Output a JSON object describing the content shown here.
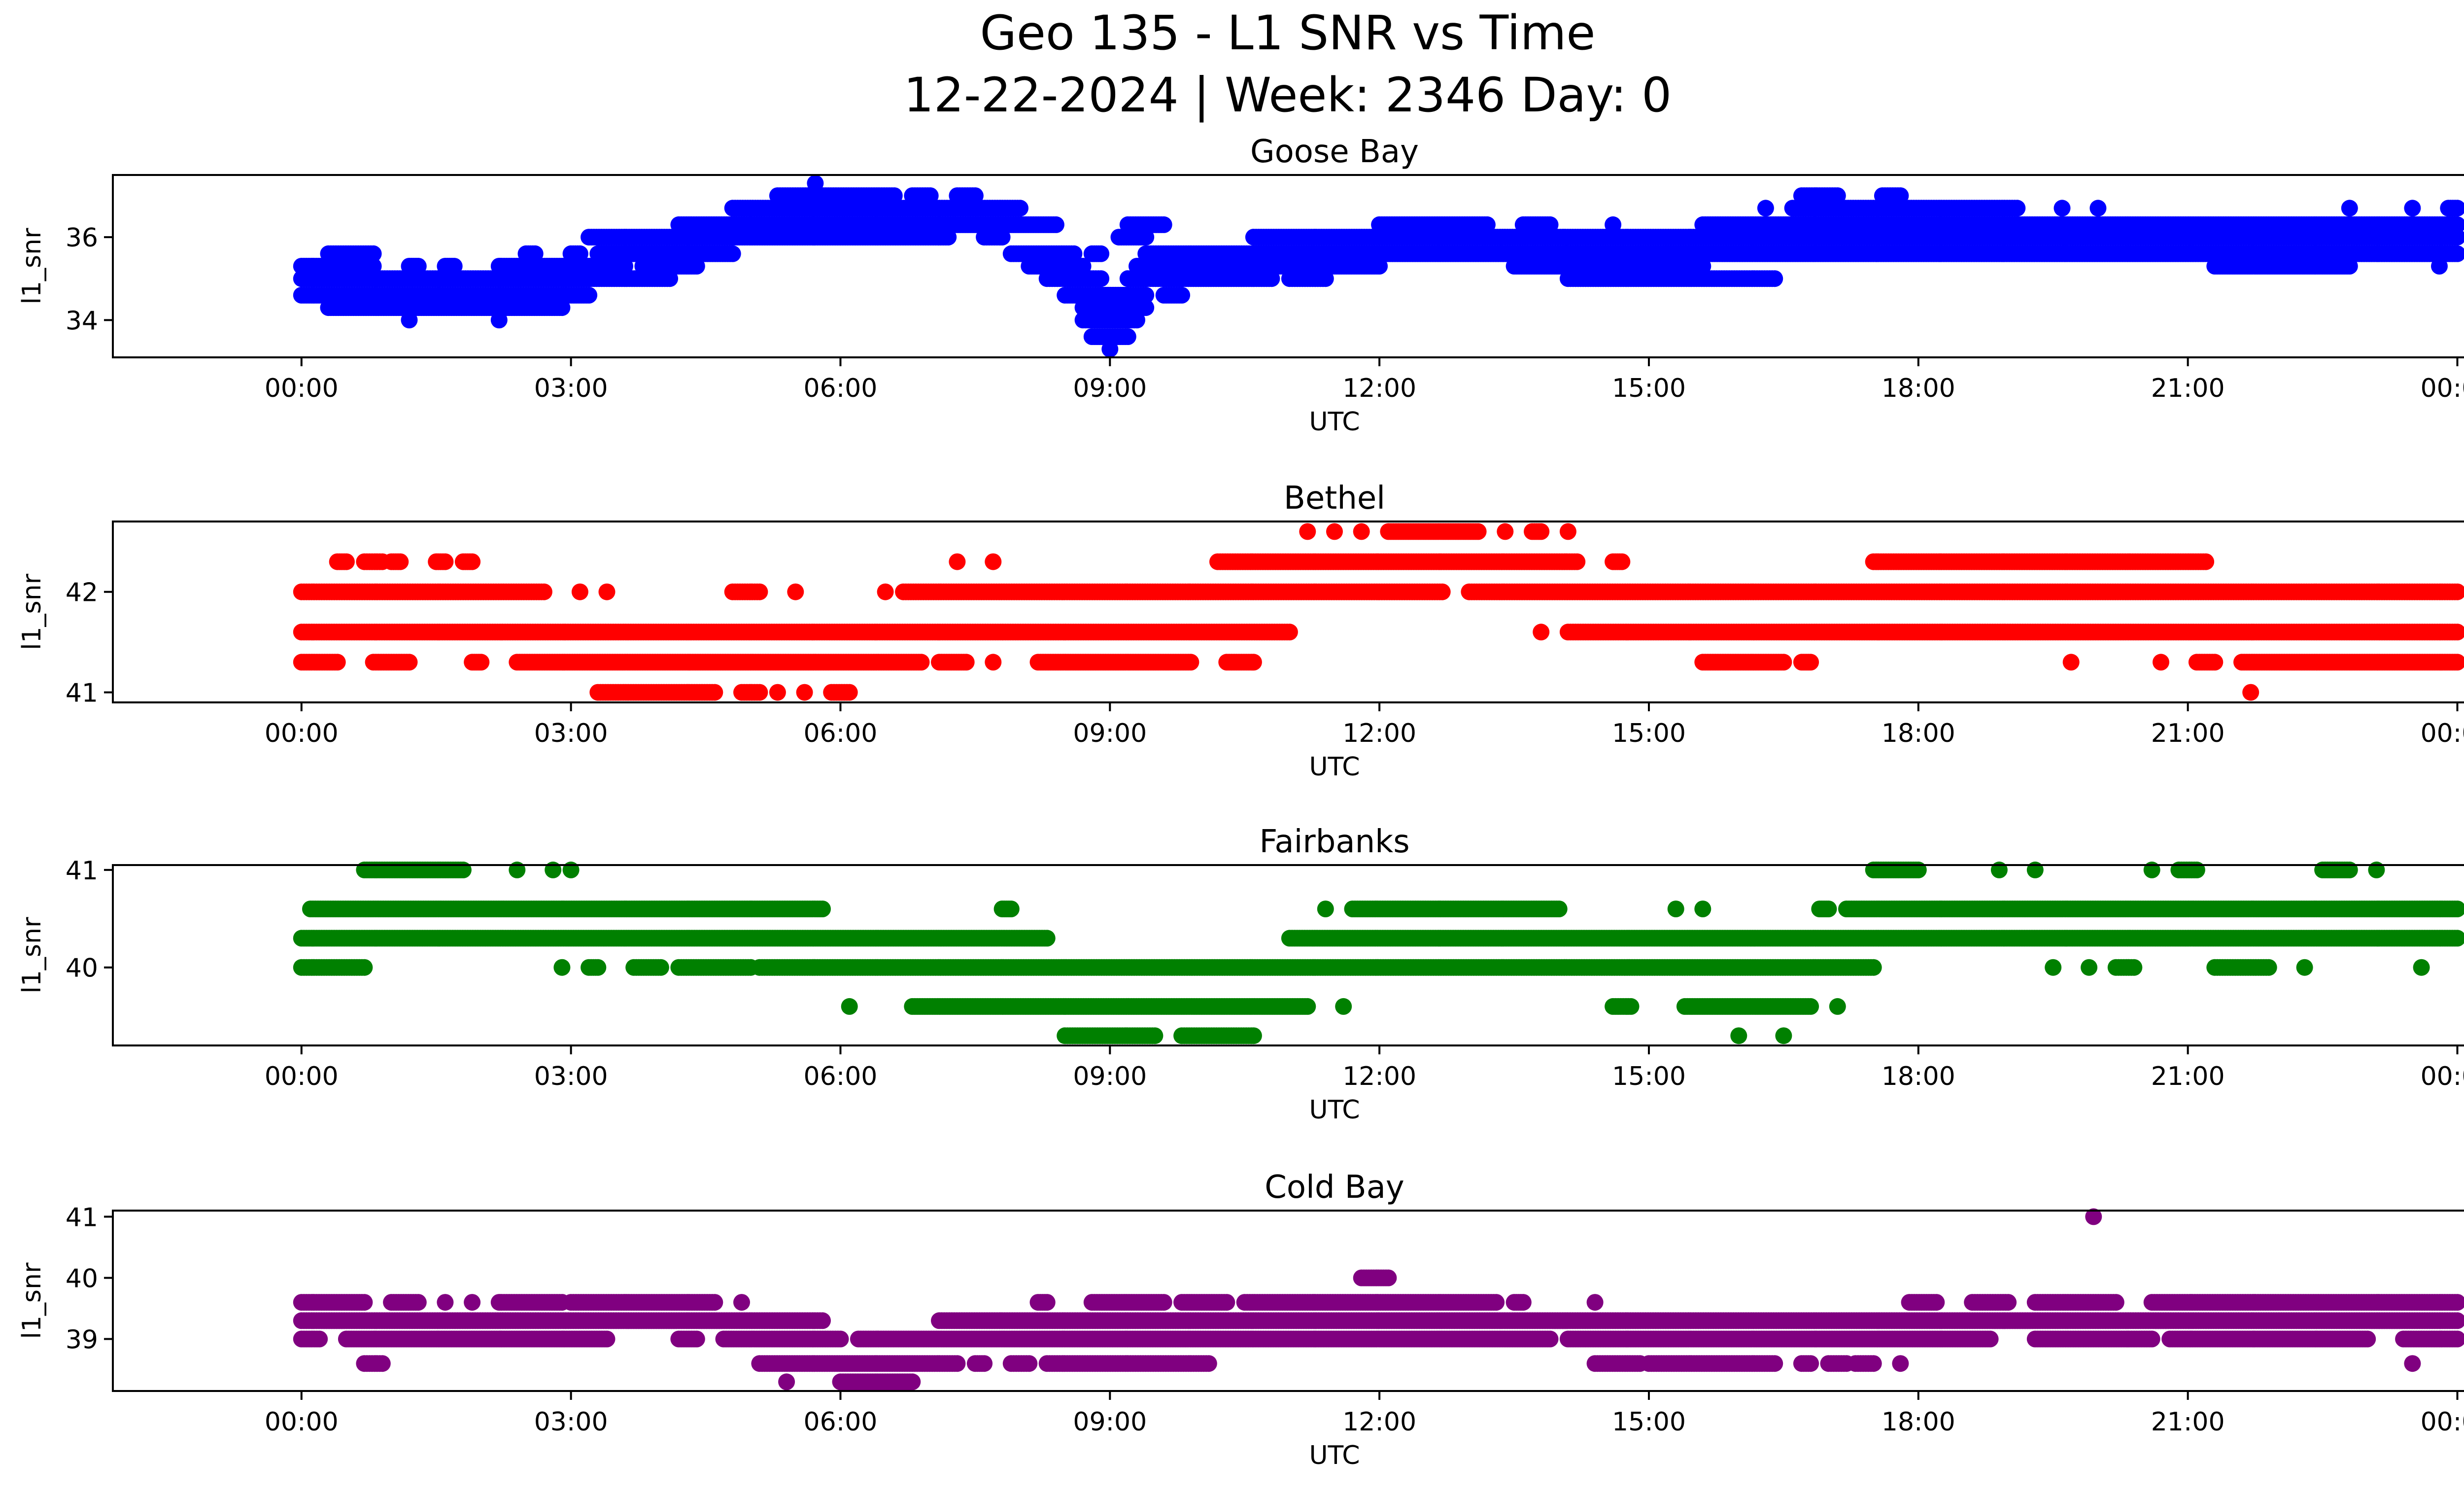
{
  "figure": {
    "title_line1": "Geo 135 - L1 SNR vs Time",
    "title_line2": "12-22-2024 | Week: 2346 Day: 0"
  },
  "chart_data": [
    {
      "type": "scatter",
      "title": "Goose Bay",
      "xlabel": "UTC",
      "ylabel": "l1_snr",
      "color": "#0000ff",
      "xlim": [
        -2.1,
        25.1
      ],
      "ylim": [
        33.1,
        37.5
      ],
      "x_ticks": [
        0,
        3,
        6,
        9,
        12,
        15,
        18,
        21,
        24
      ],
      "x_tick_labels": [
        "00:00",
        "03:00",
        "06:00",
        "09:00",
        "12:00",
        "15:00",
        "18:00",
        "21:00",
        "00:00"
      ],
      "y_ticks": [
        34,
        36
      ],
      "y_tick_labels": [
        "34",
        "36"
      ],
      "bands": [
        {
          "level": 37.3,
          "segments": [
            [
              5.72,
              5.72
            ]
          ]
        },
        {
          "level": 37.0,
          "segments": [
            [
              5.3,
              6.6
            ],
            [
              6.8,
              7.0
            ],
            [
              7.3,
              7.5
            ],
            [
              16.7,
              17.1
            ],
            [
              17.6,
              17.8
            ]
          ]
        },
        {
          "level": 36.7,
          "segments": [
            [
              4.8,
              8.0
            ],
            [
              16.3,
              16.3
            ],
            [
              16.6,
              19.1
            ],
            [
              19.6,
              19.6
            ],
            [
              20.0,
              20.0
            ],
            [
              22.8,
              22.8
            ],
            [
              23.5,
              23.5
            ],
            [
              23.9,
              24.0
            ]
          ]
        },
        {
          "level": 36.3,
          "segments": [
            [
              4.2,
              8.4
            ],
            [
              9.2,
              9.6
            ],
            [
              12.0,
              13.2
            ],
            [
              13.6,
              13.9
            ],
            [
              14.6,
              14.6
            ],
            [
              15.6,
              24.0
            ]
          ]
        },
        {
          "level": 36.0,
          "segments": [
            [
              3.2,
              7.2
            ],
            [
              7.6,
              7.8
            ],
            [
              9.1,
              9.4
            ],
            [
              10.6,
              24.0
            ]
          ]
        },
        {
          "level": 35.6,
          "segments": [
            [
              0.3,
              0.8
            ],
            [
              2.5,
              2.6
            ],
            [
              3.0,
              3.1
            ],
            [
              3.3,
              4.8
            ],
            [
              7.9,
              8.6
            ],
            [
              8.8,
              8.9
            ],
            [
              9.4,
              24.0
            ]
          ]
        },
        {
          "level": 35.3,
          "segments": [
            [
              0.0,
              0.8
            ],
            [
              1.2,
              1.3
            ],
            [
              1.6,
              1.7
            ],
            [
              2.2,
              3.6
            ],
            [
              3.8,
              4.4
            ],
            [
              8.1,
              8.7
            ],
            [
              9.3,
              12.0
            ],
            [
              13.5,
              15.6
            ],
            [
              21.3,
              22.8
            ],
            [
              23.8,
              23.8
            ]
          ]
        },
        {
          "level": 35.0,
          "segments": [
            [
              0.0,
              4.1
            ],
            [
              8.3,
              8.9
            ],
            [
              9.2,
              10.8
            ],
            [
              11.0,
              11.4
            ],
            [
              14.1,
              16.4
            ]
          ]
        },
        {
          "level": 34.6,
          "segments": [
            [
              0.0,
              3.2
            ],
            [
              8.5,
              9.4
            ],
            [
              9.6,
              9.8
            ]
          ]
        },
        {
          "level": 34.3,
          "segments": [
            [
              0.3,
              2.9
            ],
            [
              8.7,
              9.4
            ]
          ]
        },
        {
          "level": 34.0,
          "segments": [
            [
              1.2,
              1.2
            ],
            [
              2.2,
              2.2
            ],
            [
              8.7,
              9.3
            ]
          ]
        },
        {
          "level": 33.6,
          "segments": [
            [
              8.8,
              9.2
            ]
          ]
        },
        {
          "level": 33.3,
          "segments": [
            [
              9.0,
              9.0
            ]
          ]
        }
      ]
    },
    {
      "type": "scatter",
      "title": "Bethel",
      "xlabel": "UTC",
      "ylabel": "l1_snr",
      "color": "#ff0000",
      "xlim": [
        -2.1,
        25.1
      ],
      "ylim": [
        40.9,
        42.7
      ],
      "x_ticks": [
        0,
        3,
        6,
        9,
        12,
        15,
        18,
        21,
        24
      ],
      "x_tick_labels": [
        "00:00",
        "03:00",
        "06:00",
        "09:00",
        "12:00",
        "15:00",
        "18:00",
        "21:00",
        "00:00"
      ],
      "y_ticks": [
        41,
        42
      ],
      "y_tick_labels": [
        "41",
        "42"
      ],
      "bands": [
        {
          "level": 42.6,
          "segments": [
            [
              11.2,
              11.2
            ],
            [
              11.5,
              11.5
            ],
            [
              11.8,
              11.8
            ],
            [
              12.1,
              13.1
            ],
            [
              13.4,
              13.4
            ],
            [
              13.7,
              13.8
            ],
            [
              14.1,
              14.1
            ]
          ]
        },
        {
          "level": 42.3,
          "segments": [
            [
              0.4,
              0.5
            ],
            [
              0.7,
              0.9
            ],
            [
              1.0,
              1.1
            ],
            [
              1.5,
              1.6
            ],
            [
              1.8,
              1.9
            ],
            [
              7.3,
              7.3
            ],
            [
              7.7,
              7.7
            ],
            [
              10.2,
              14.2
            ],
            [
              14.6,
              14.7
            ],
            [
              17.5,
              21.2
            ]
          ]
        },
        {
          "level": 42.0,
          "segments": [
            [
              0.0,
              2.7
            ],
            [
              3.1,
              3.1
            ],
            [
              3.4,
              3.4
            ],
            [
              4.8,
              5.1
            ],
            [
              5.5,
              5.5
            ],
            [
              6.5,
              6.5
            ],
            [
              6.7,
              12.7
            ],
            [
              13.0,
              24.0
            ]
          ]
        },
        {
          "level": 41.6,
          "segments": [
            [
              0.0,
              11.0
            ],
            [
              13.8,
              13.8
            ],
            [
              14.1,
              24.0
            ]
          ]
        },
        {
          "level": 41.3,
          "segments": [
            [
              0.0,
              0.4
            ],
            [
              0.8,
              1.2
            ],
            [
              1.9,
              2.0
            ],
            [
              2.4,
              6.9
            ],
            [
              7.1,
              7.4
            ],
            [
              7.7,
              7.7
            ],
            [
              8.2,
              9.9
            ],
            [
              10.3,
              10.6
            ],
            [
              15.6,
              16.5
            ],
            [
              16.7,
              16.8
            ],
            [
              19.7,
              19.7
            ],
            [
              20.7,
              20.7
            ],
            [
              21.1,
              21.3
            ],
            [
              21.6,
              24.0
            ]
          ]
        },
        {
          "level": 41.0,
          "segments": [
            [
              3.3,
              4.6
            ],
            [
              4.9,
              5.1
            ],
            [
              5.3,
              5.3
            ],
            [
              5.6,
              5.6
            ],
            [
              5.9,
              6.1
            ],
            [
              21.7,
              21.7
            ]
          ]
        }
      ]
    },
    {
      "type": "scatter",
      "title": "Fairbanks",
      "xlabel": "UTC",
      "ylabel": "l1_snr",
      "color": "#008000",
      "xlim": [
        -2.1,
        25.1
      ],
      "ylim": [
        39.2,
        41.05
      ],
      "x_ticks": [
        0,
        3,
        6,
        9,
        12,
        15,
        18,
        21,
        24
      ],
      "x_tick_labels": [
        "00:00",
        "03:00",
        "06:00",
        "09:00",
        "12:00",
        "15:00",
        "18:00",
        "21:00",
        "00:00"
      ],
      "y_ticks": [
        40,
        41
      ],
      "y_tick_labels": [
        "40",
        "41"
      ],
      "bands": [
        {
          "level": 41.0,
          "segments": [
            [
              0.7,
              1.8
            ],
            [
              2.4,
              2.4
            ],
            [
              2.8,
              2.8
            ],
            [
              3.0,
              3.0
            ],
            [
              17.5,
              18.0
            ],
            [
              18.9,
              18.9
            ],
            [
              19.3,
              19.3
            ],
            [
              20.6,
              20.6
            ],
            [
              20.9,
              21.1
            ],
            [
              22.5,
              22.8
            ],
            [
              23.1,
              23.1
            ]
          ]
        },
        {
          "level": 40.6,
          "segments": [
            [
              0.1,
              5.8
            ],
            [
              7.8,
              7.9
            ],
            [
              11.4,
              11.4
            ],
            [
              11.7,
              14.0
            ],
            [
              15.3,
              15.3
            ],
            [
              15.6,
              15.6
            ],
            [
              16.9,
              17.0
            ],
            [
              17.2,
              24.0
            ]
          ]
        },
        {
          "level": 40.3,
          "segments": [
            [
              0.0,
              8.3
            ],
            [
              11.0,
              24.0
            ]
          ]
        },
        {
          "level": 40.0,
          "segments": [
            [
              0.0,
              0.7
            ],
            [
              2.9,
              2.9
            ],
            [
              3.2,
              3.3
            ],
            [
              3.7,
              4.0
            ],
            [
              4.2,
              5.0
            ],
            [
              5.1,
              17.5
            ],
            [
              19.5,
              19.5
            ],
            [
              19.9,
              19.9
            ],
            [
              20.2,
              20.4
            ],
            [
              21.3,
              21.9
            ],
            [
              22.3,
              22.3
            ],
            [
              23.6,
              23.6
            ]
          ]
        },
        {
          "level": 39.6,
          "segments": [
            [
              6.1,
              6.1
            ],
            [
              6.8,
              11.2
            ],
            [
              11.6,
              11.6
            ],
            [
              14.6,
              14.8
            ],
            [
              15.4,
              16.8
            ],
            [
              17.1,
              17.1
            ]
          ]
        },
        {
          "level": 39.3,
          "segments": [
            [
              8.5,
              9.5
            ],
            [
              9.8,
              10.6
            ],
            [
              16.0,
              16.0
            ],
            [
              16.5,
              16.5
            ]
          ]
        }
      ]
    },
    {
      "type": "scatter",
      "title": "Cold Bay",
      "xlabel": "UTC",
      "ylabel": "l1_snr",
      "color": "#800080",
      "xlim": [
        -2.1,
        25.1
      ],
      "ylim": [
        38.15,
        41.1
      ],
      "x_ticks": [
        0,
        3,
        6,
        9,
        12,
        15,
        18,
        21,
        24
      ],
      "x_tick_labels": [
        "00:00",
        "03:00",
        "06:00",
        "09:00",
        "12:00",
        "15:00",
        "18:00",
        "21:00",
        "00:00"
      ],
      "y_ticks": [
        39,
        40,
        41
      ],
      "y_tick_labels": [
        "39",
        "40",
        "41"
      ],
      "bands": [
        {
          "level": 41.0,
          "segments": [
            [
              19.95,
              19.95
            ]
          ]
        },
        {
          "level": 40.0,
          "segments": [
            [
              11.8,
              12.1
            ]
          ]
        },
        {
          "level": 39.6,
          "segments": [
            [
              0.0,
              0.7
            ],
            [
              1.0,
              1.3
            ],
            [
              1.6,
              1.6
            ],
            [
              1.9,
              1.9
            ],
            [
              2.2,
              2.9
            ],
            [
              3.0,
              4.6
            ],
            [
              4.9,
              4.9
            ],
            [
              8.2,
              8.3
            ],
            [
              8.8,
              9.6
            ],
            [
              9.8,
              10.3
            ],
            [
              10.5,
              13.3
            ],
            [
              13.5,
              13.6
            ],
            [
              14.4,
              14.4
            ],
            [
              17.9,
              18.2
            ],
            [
              18.6,
              19.0
            ],
            [
              19.3,
              20.2
            ],
            [
              20.6,
              24.0
            ]
          ]
        },
        {
          "level": 39.3,
          "segments": [
            [
              0.0,
              5.8
            ],
            [
              7.1,
              24.0
            ]
          ]
        },
        {
          "level": 39.0,
          "segments": [
            [
              0.0,
              0.2
            ],
            [
              0.5,
              3.4
            ],
            [
              4.2,
              4.4
            ],
            [
              4.7,
              6.0
            ],
            [
              6.2,
              13.9
            ],
            [
              14.1,
              18.8
            ],
            [
              19.3,
              20.6
            ],
            [
              20.8,
              23.0
            ],
            [
              23.4,
              24.0
            ]
          ]
        },
        {
          "level": 38.6,
          "segments": [
            [
              0.7,
              0.9
            ],
            [
              5.1,
              7.3
            ],
            [
              7.5,
              7.6
            ],
            [
              7.9,
              8.1
            ],
            [
              8.3,
              10.1
            ],
            [
              14.4,
              14.9
            ],
            [
              15.0,
              16.4
            ],
            [
              16.7,
              16.8
            ],
            [
              17.0,
              17.2
            ],
            [
              17.3,
              17.5
            ],
            [
              17.8,
              17.8
            ],
            [
              23.5,
              23.5
            ]
          ]
        },
        {
          "level": 38.3,
          "segments": [
            [
              5.4,
              5.4
            ],
            [
              6.0,
              6.8
            ]
          ]
        }
      ]
    }
  ]
}
